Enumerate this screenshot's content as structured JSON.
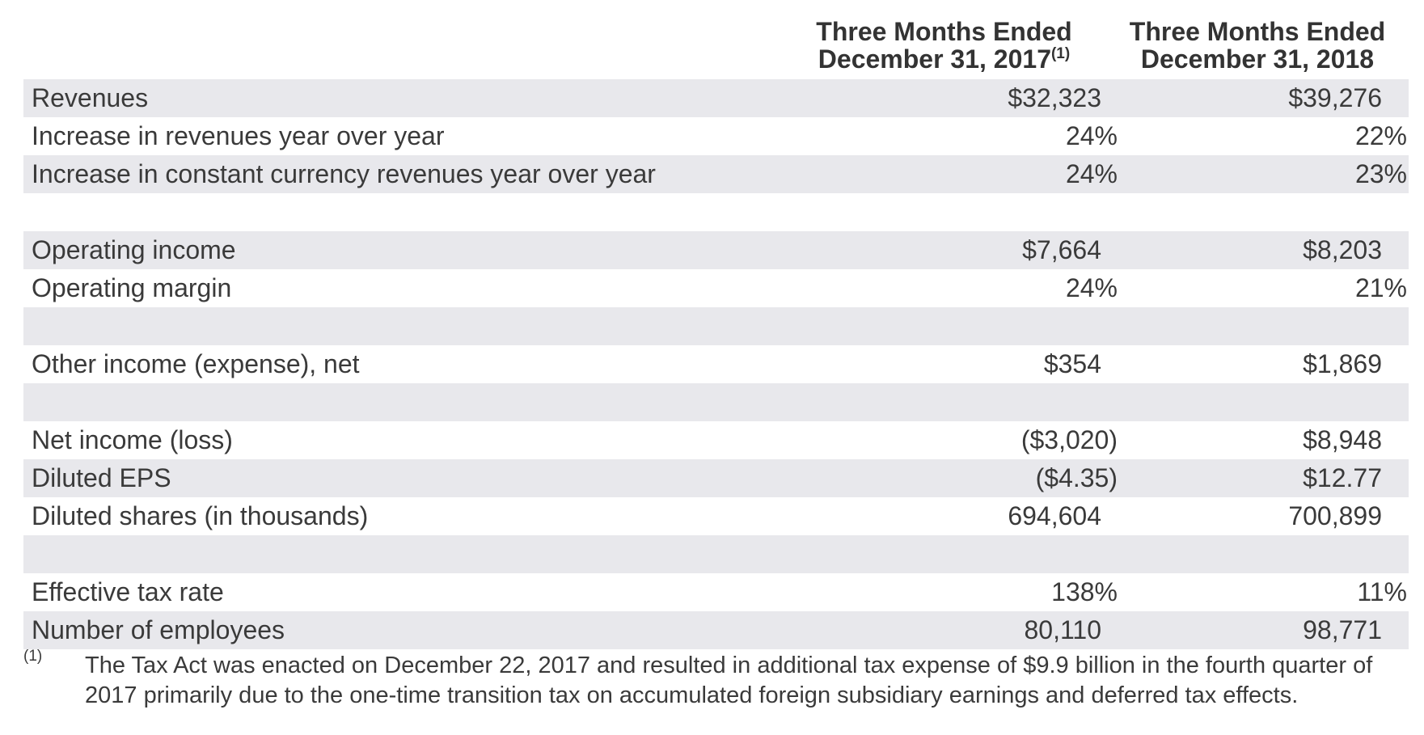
{
  "header": {
    "col1_line1": "Three Months Ended",
    "col1_line2": "December 31, 2017",
    "col1_note": "(1)",
    "col2_line1": "Three Months Ended",
    "col2_line2": "December 31, 2018"
  },
  "rows": [
    {
      "label": "Revenues",
      "v2017": "$32,323",
      "v2018": "$39,276"
    },
    {
      "label": "Increase in revenues year over year",
      "v2017": "24%",
      "v2018": "22%"
    },
    {
      "label": "Increase in constant currency revenues year over year",
      "v2017": "24%",
      "v2018": "23%"
    },
    {
      "label": "Operating income",
      "v2017": "$7,664",
      "v2018": "$8,203"
    },
    {
      "label": "Operating margin",
      "v2017": "24%",
      "v2018": "21%"
    },
    {
      "label": "Other income (expense), net",
      "v2017": "$354",
      "v2018": "$1,869"
    },
    {
      "label": "Net income (loss)",
      "v2017": "($3,020)",
      "v2018": "$8,948"
    },
    {
      "label": "Diluted EPS",
      "v2017": "($4.35)",
      "v2018": "$12.77"
    },
    {
      "label": "Diluted shares (in thousands)",
      "v2017": "694,604",
      "v2018": "700,899"
    },
    {
      "label": "Effective tax rate",
      "v2017": "138%",
      "v2018": "11%"
    },
    {
      "label": "Number of employees",
      "v2017": "80,110",
      "v2018": "98,771"
    }
  ],
  "footnote": {
    "mark": "(1)",
    "text": "The Tax Act was enacted on December 22, 2017 and resulted in additional tax expense of $9.9 billion in the fourth quarter of 2017 primarily due to the one-time transition tax on accumulated foreign subsidiary earnings and deferred tax effects."
  }
}
